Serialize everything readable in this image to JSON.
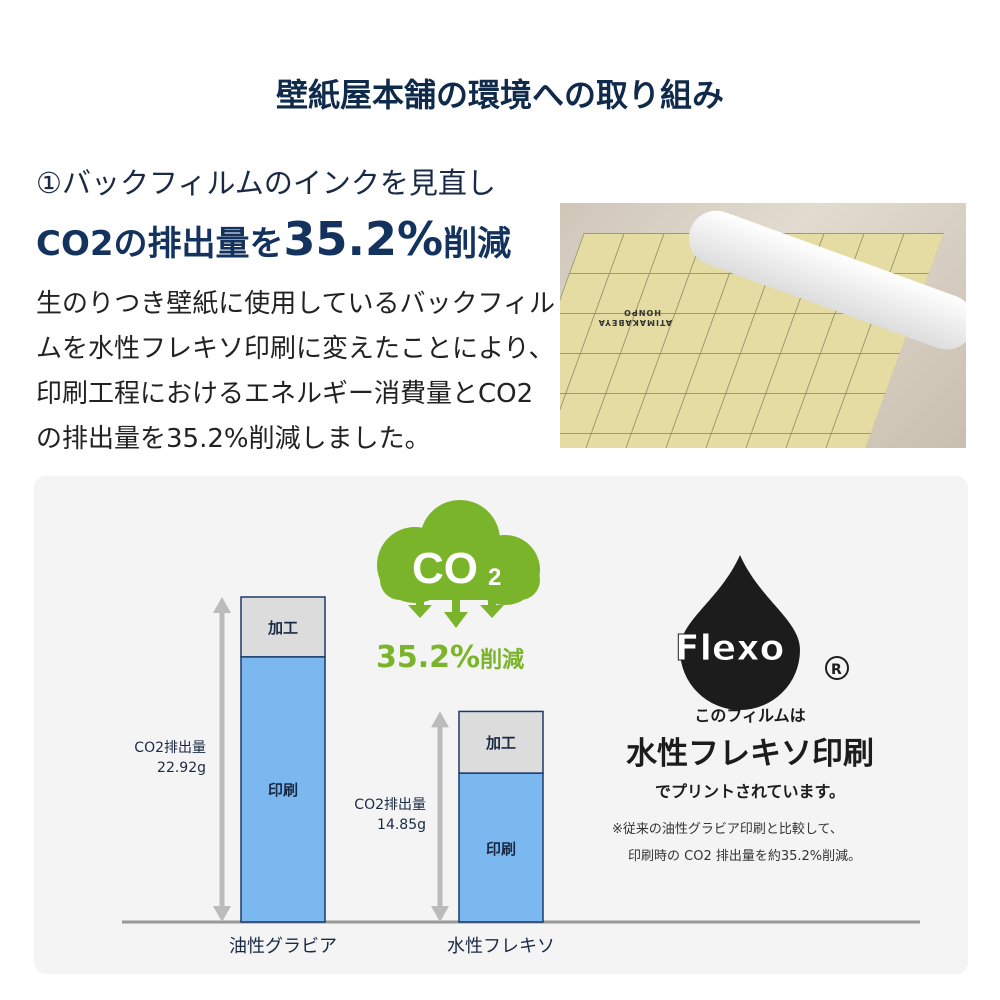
{
  "title": "壁紙屋本舗の環境への取り組み",
  "heading": {
    "line1": "①バックフィルムのインクを見直し",
    "line2_pre": "CO2の排出量を",
    "line2_big": "35.2%",
    "line2_post": "削減"
  },
  "body": "生のりつき壁紙に使用しているバックフィルムを水性フレキソ印刷に変えたことにより、印刷工程におけるエネルギー消費量とCO2の排出量を35.2%削減しました。",
  "photo": {
    "print_text": "ATIMAKABEYA HONPO"
  },
  "co2_badge": {
    "text": "CO",
    "sub": "2",
    "reduction": "35.2%",
    "reduction_suffix": "削減",
    "color": "#7ab42a"
  },
  "flexo": {
    "logo": "Flexo",
    "registered": "®",
    "line1": "このフィルムは",
    "line2": "水性フレキソ印刷",
    "line3": "でプリントされています。",
    "note1": "※従来の油性グラビア印刷と比較して、",
    "note2": "印刷時の CO2 排出量を約35.2%削減。"
  },
  "chart_data": {
    "type": "bar",
    "stacked": true,
    "categories": [
      "油性グラビア",
      "水性フレキソ"
    ],
    "series": [
      {
        "name": "印刷",
        "values": [
          18.7,
          10.5
        ],
        "color": "#7cb8f0"
      },
      {
        "name": "加工",
        "values": [
          4.22,
          4.35
        ],
        "color": "#dcdcdc"
      }
    ],
    "totals": [
      22.92,
      14.85
    ],
    "total_labels": [
      [
        "CO2排出量",
        "22.92g"
      ],
      [
        "CO2排出量",
        "14.85g"
      ]
    ],
    "ylim": [
      0,
      22.92
    ]
  }
}
